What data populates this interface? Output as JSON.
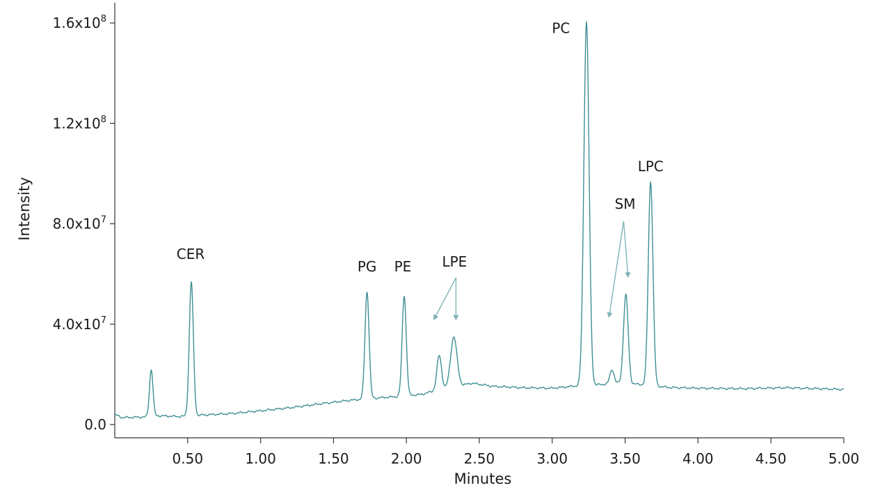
{
  "chart_data": {
    "type": "line",
    "xlabel": "Minutes",
    "ylabel": "Intensity",
    "xlim": [
      0.0,
      5.0
    ],
    "ylim": [
      0,
      160000000.0
    ],
    "x_ticks": [
      0.5,
      1.0,
      1.5,
      2.0,
      2.5,
      3.0,
      3.5,
      4.0,
      4.5,
      5.0
    ],
    "x_tick_labels": [
      "0.50",
      "1.00",
      "1.50",
      "2.00",
      "2.50",
      "3.00",
      "3.50",
      "4.00",
      "4.50",
      "5.00"
    ],
    "y_ticks": [
      0,
      40000000.0,
      80000000.0,
      120000000.0,
      160000000.0
    ],
    "y_tick_labels": [
      {
        "mantissa": "0.0",
        "exponent": ""
      },
      {
        "mantissa": "4.0x10",
        "exponent": "7"
      },
      {
        "mantissa": "8.0x10",
        "exponent": "7"
      },
      {
        "mantissa": "1.2x10",
        "exponent": "8"
      },
      {
        "mantissa": "1.6x10",
        "exponent": "8"
      }
    ],
    "line_color": "#3f8e93",
    "series": [
      {
        "baseline": [
          [
            0.0,
            4000000
          ],
          [
            0.05,
            2800000
          ],
          [
            0.2,
            3000000
          ],
          [
            0.3,
            3500000
          ],
          [
            0.45,
            3200000
          ],
          [
            0.6,
            3800000
          ],
          [
            0.8,
            4400000
          ],
          [
            1.0,
            5500000
          ],
          [
            1.2,
            6700000
          ],
          [
            1.4,
            8200000
          ],
          [
            1.6,
            9600000
          ],
          [
            1.75,
            10400000
          ],
          [
            1.9,
            11000000
          ],
          [
            2.1,
            12000000
          ],
          [
            2.2,
            13500000
          ],
          [
            2.45,
            16500000
          ],
          [
            2.6,
            15200000
          ],
          [
            2.8,
            14700000
          ],
          [
            3.0,
            14500000
          ],
          [
            3.15,
            15300000
          ],
          [
            3.3,
            15800000
          ],
          [
            3.45,
            16500000
          ],
          [
            3.6,
            16000000
          ],
          [
            3.8,
            14800000
          ],
          [
            4.0,
            14500000
          ],
          [
            4.3,
            14300000
          ],
          [
            4.6,
            14700000
          ],
          [
            5.0,
            14000000
          ]
        ],
        "peaks": [
          {
            "rt": 0.25,
            "height": 22000000,
            "width": 0.012
          },
          {
            "rt": 0.525,
            "height": 56900000,
            "width": 0.014
          },
          {
            "rt": 1.47,
            "height": 3000000,
            "width": 0.012
          },
          {
            "rt": 1.73,
            "height": 53000000,
            "width": 0.014
          },
          {
            "rt": 1.985,
            "height": 51500000,
            "width": 0.014
          },
          {
            "rt": 2.225,
            "height": 27500000,
            "width": 0.016
          },
          {
            "rt": 2.325,
            "height": 35000000,
            "width": 0.022
          },
          {
            "rt": 3.235,
            "height": 160500000,
            "width": 0.018
          },
          {
            "rt": 3.41,
            "height": 22000000,
            "width": 0.014
          },
          {
            "rt": 3.505,
            "height": 51800000,
            "width": 0.016
          },
          {
            "rt": 3.675,
            "height": 97000000,
            "width": 0.016
          }
        ]
      }
    ],
    "annotations": [
      {
        "text": "CER",
        "x": 0.52,
        "y": 66000000
      },
      {
        "text": "PG",
        "x": 1.73,
        "y": 61000000
      },
      {
        "text": "PE",
        "x": 1.975,
        "y": 61000000
      },
      {
        "text": "LPE",
        "x": 2.33,
        "y": 63000000
      },
      {
        "text": "PC",
        "x": 3.06,
        "y": 156000000
      },
      {
        "text": "SM",
        "x": 3.5,
        "y": 86000000
      },
      {
        "text": "LPC",
        "x": 3.675,
        "y": 101000000
      }
    ],
    "arrows": [
      {
        "from": [
          2.34,
          58500000
        ],
        "to": [
          2.19,
          42000000
        ]
      },
      {
        "from": [
          2.34,
          58500000
        ],
        "to": [
          2.34,
          42000000
        ]
      },
      {
        "from": [
          3.49,
          81000000
        ],
        "to": [
          3.39,
          43000000
        ]
      },
      {
        "from": [
          3.49,
          81000000
        ],
        "to": [
          3.52,
          59000000
        ]
      }
    ]
  }
}
